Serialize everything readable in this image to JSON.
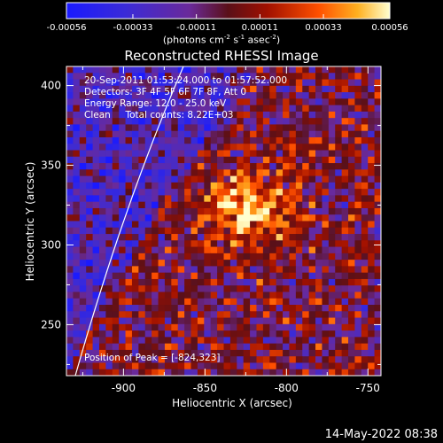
{
  "chart_data": {
    "type": "heatmap",
    "title": "Reconstructed RHESSI Image",
    "xlabel": "Heliocentric X (arcsec)",
    "ylabel": "Heliocentric Y (arcsec)",
    "xlim": [
      -935,
      -742
    ],
    "ylim": [
      218,
      412
    ],
    "xticks": [
      -900,
      -850,
      -800,
      -750
    ],
    "xtick_labels": [
      "-900",
      "-850",
      "-800",
      "-750"
    ],
    "yticks": [
      250,
      300,
      350,
      400
    ],
    "ytick_labels": [
      "250",
      "300",
      "350",
      "400"
    ],
    "colorbar": {
      "min": -0.00056,
      "max": 0.00056,
      "ticks": [
        -0.00056,
        -0.00033,
        -0.00011,
        0.00011,
        0.00033,
        0.00056
      ],
      "tick_labels": [
        "-0.00056",
        "-0.00033",
        "-0.00011",
        "0.00011",
        "0.00033",
        "0.00056"
      ],
      "unit_text": "(photons cm",
      "unit_parts": [
        "(photons cm",
        "-2",
        " s",
        "-1",
        " asec",
        "-2",
        ")"
      ]
    },
    "peak": [
      -824,
      323
    ],
    "annotations": [
      "20-Sep-2011 01:53:24.000 to 01:57:52.000",
      "Detectors: 3F 4F 5F 6F 7F 8F, Att 0",
      "Energy Range: 12.0 - 25.0 keV",
      "Clean     Total counts: 8.22E+03"
    ],
    "peak_label": "Position of Peak = [-824,323]",
    "colors": {
      "background": "#000000",
      "text": "#ffffff",
      "limb": "#ffffff"
    }
  },
  "footer": {
    "timestamp": "14-May-2022 08:38"
  }
}
